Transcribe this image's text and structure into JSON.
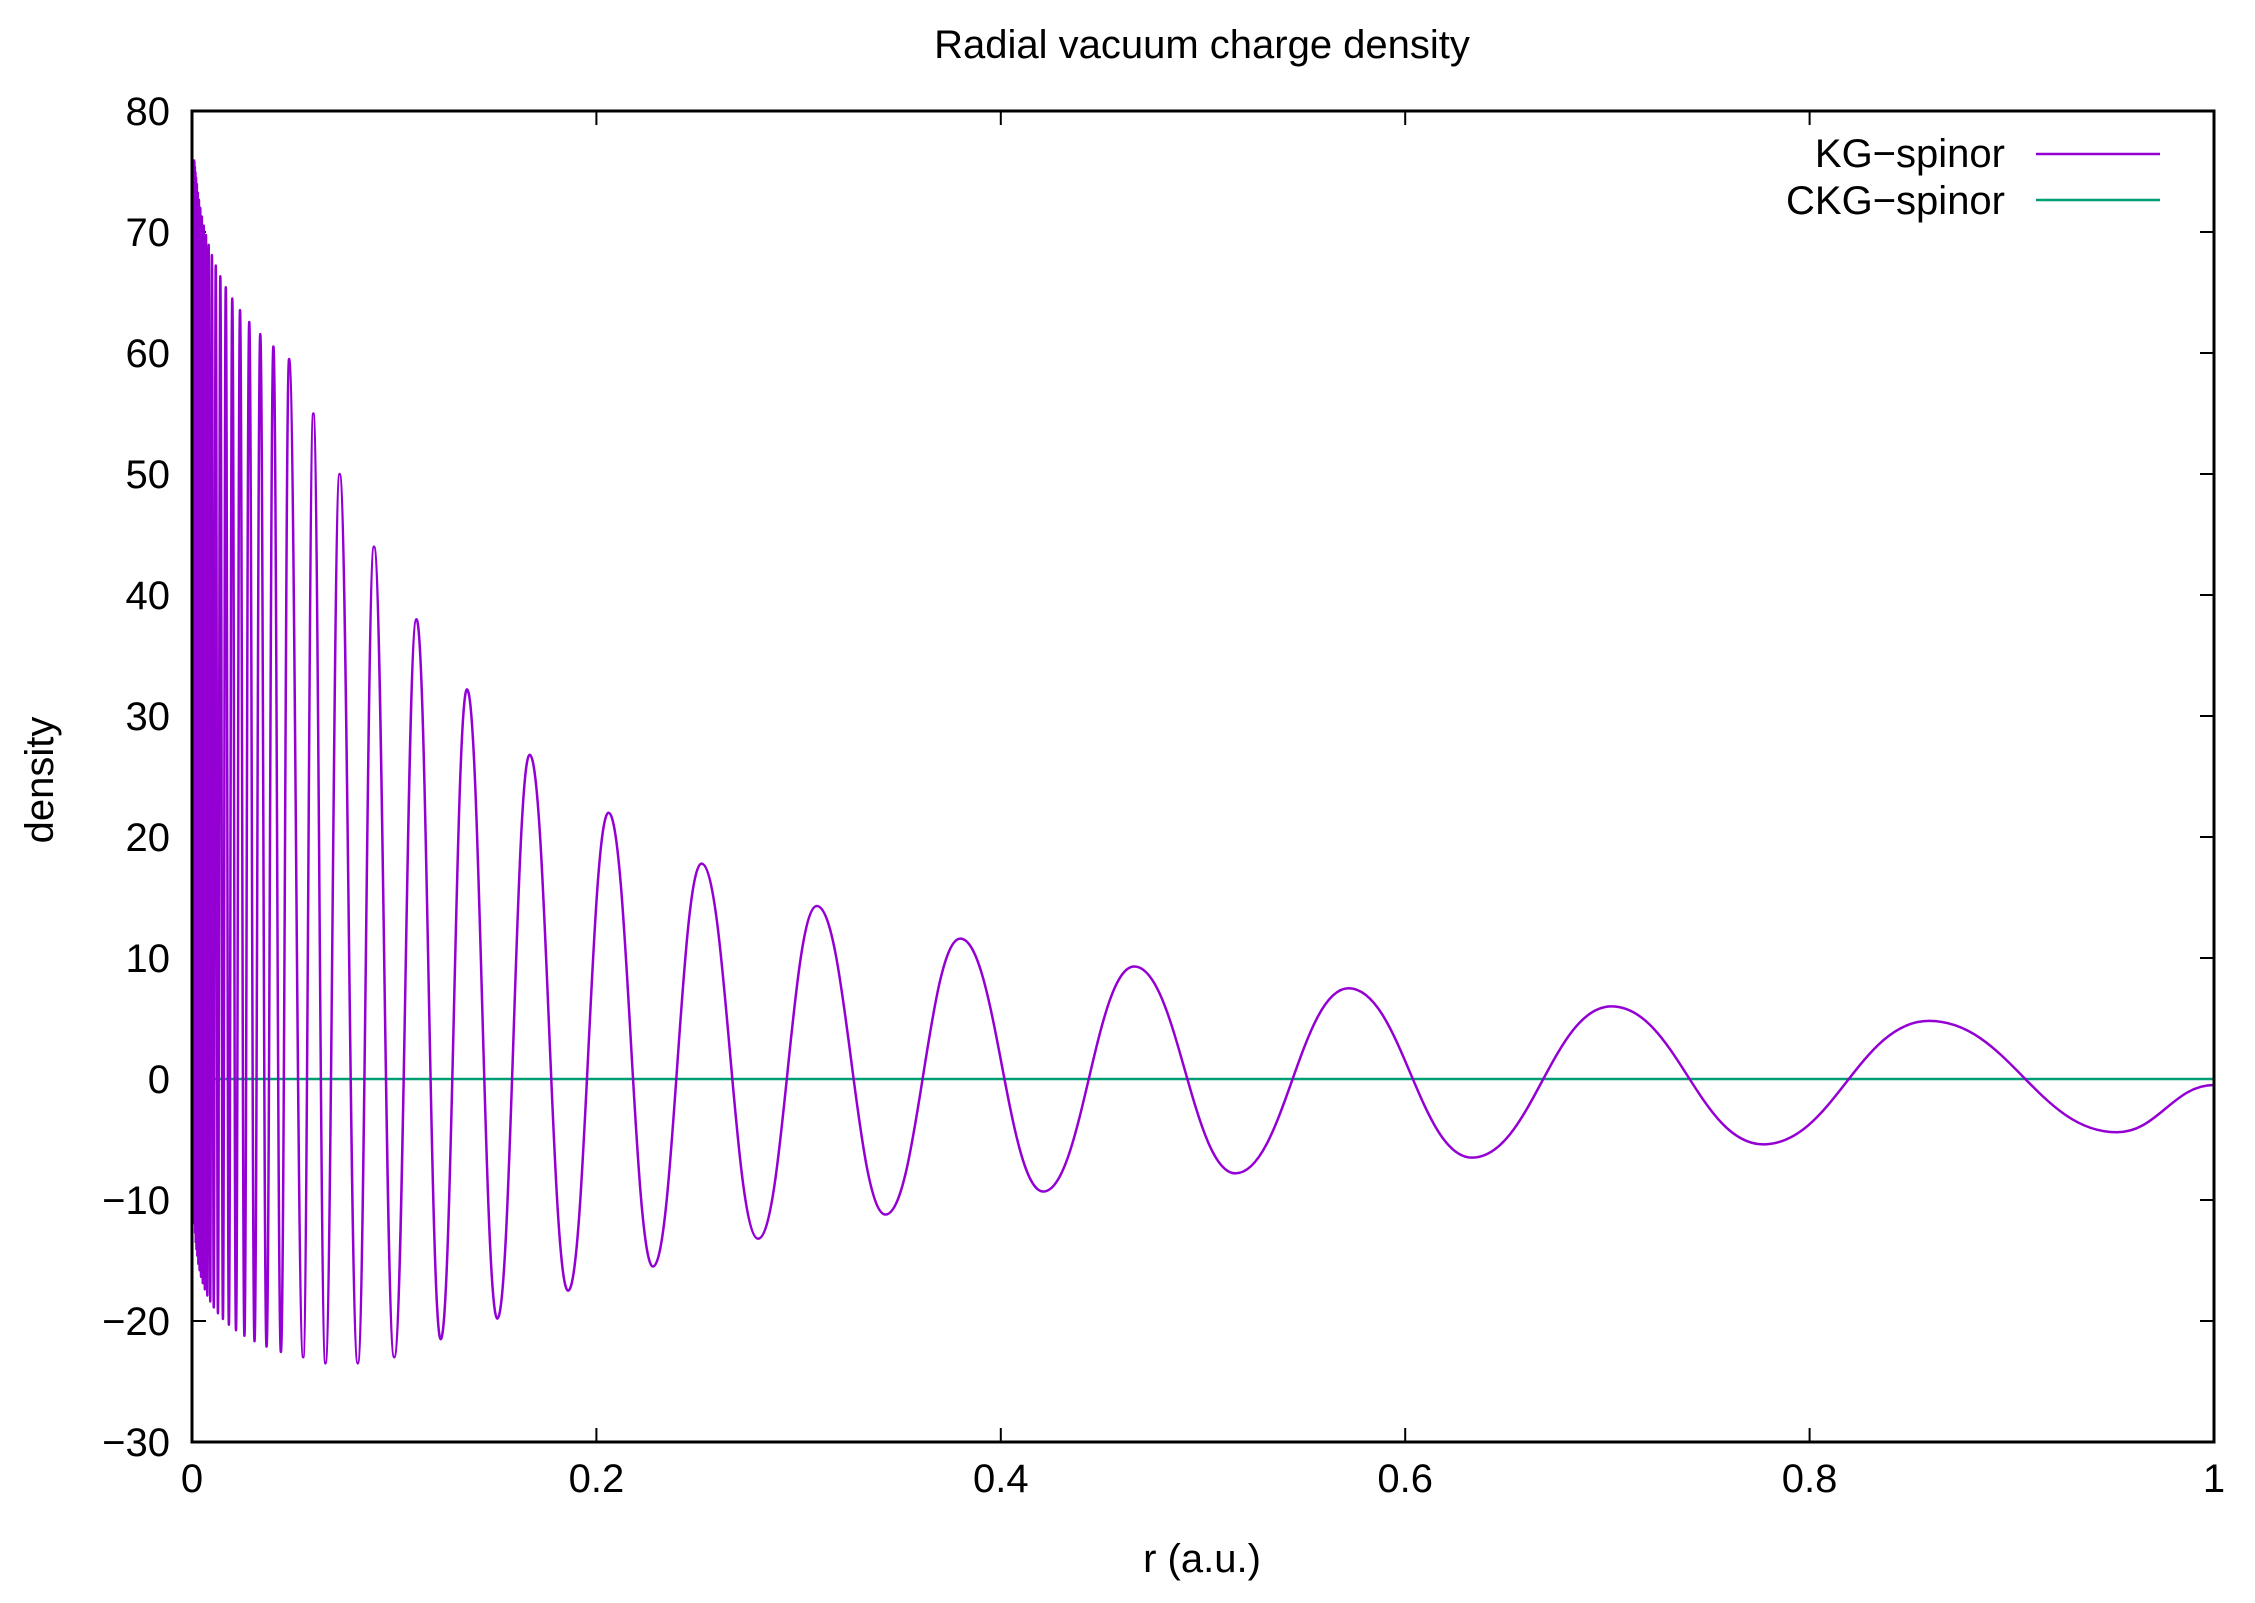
{
  "chart_data": {
    "type": "line",
    "title": "Radial vacuum charge density",
    "xlabel": "r (a.u.)",
    "ylabel": "density",
    "xlim": [
      0,
      1
    ],
    "ylim": [
      -30,
      80
    ],
    "xticks": [
      0,
      0.2,
      0.4,
      0.6,
      0.8,
      1
    ],
    "xtick_labels": [
      "0",
      "0.2",
      "0.4",
      "0.6",
      "0.8",
      "1"
    ],
    "yticks": [
      -30,
      -20,
      -10,
      0,
      10,
      20,
      30,
      40,
      50,
      60,
      70,
      80
    ],
    "ytick_labels": [
      "−30",
      "−20",
      "−10",
      "0",
      "10",
      "20",
      "30",
      "40",
      "50",
      "60",
      "70",
      "80"
    ],
    "grid": false,
    "legend_position": "top-right",
    "series": [
      {
        "name": "KG−spinor",
        "color": "#9400d3",
        "description": "decaying oscillation, frequency increasing toward r=0",
        "peaks": [
          {
            "x": 0.048,
            "y": 59.5
          },
          {
            "x": 0.06,
            "y": 55.0
          },
          {
            "x": 0.073,
            "y": 50.0
          },
          {
            "x": 0.09,
            "y": 44.0
          },
          {
            "x": 0.111,
            "y": 38.0
          },
          {
            "x": 0.136,
            "y": 32.2
          },
          {
            "x": 0.167,
            "y": 26.8
          },
          {
            "x": 0.206,
            "y": 22.0
          },
          {
            "x": 0.252,
            "y": 17.8
          },
          {
            "x": 0.309,
            "y": 14.3
          },
          {
            "x": 0.38,
            "y": 11.6
          },
          {
            "x": 0.466,
            "y": 9.3
          },
          {
            "x": 0.572,
            "y": 7.5
          },
          {
            "x": 0.702,
            "y": 6.0
          },
          {
            "x": 0.859,
            "y": 4.8
          }
        ],
        "troughs": [
          {
            "x": 0.055,
            "y": -23.0
          },
          {
            "x": 0.066,
            "y": -23.5
          },
          {
            "x": 0.082,
            "y": -23.5
          },
          {
            "x": 0.1,
            "y": -23.0
          },
          {
            "x": 0.123,
            "y": -21.5
          },
          {
            "x": 0.151,
            "y": -19.8
          },
          {
            "x": 0.186,
            "y": -17.5
          },
          {
            "x": 0.228,
            "y": -15.5
          },
          {
            "x": 0.28,
            "y": -13.2
          },
          {
            "x": 0.343,
            "y": -11.2
          },
          {
            "x": 0.421,
            "y": -9.3
          },
          {
            "x": 0.516,
            "y": -7.8
          },
          {
            "x": 0.633,
            "y": -6.5
          },
          {
            "x": 0.777,
            "y": -5.4
          },
          {
            "x": 0.952,
            "y": -4.4
          }
        ],
        "end": {
          "x": 1.0,
          "y": -0.5
        }
      },
      {
        "name": "CKG−spinor",
        "color": "#009e73",
        "x": [
          0,
          1
        ],
        "y": [
          0,
          0
        ]
      }
    ]
  }
}
